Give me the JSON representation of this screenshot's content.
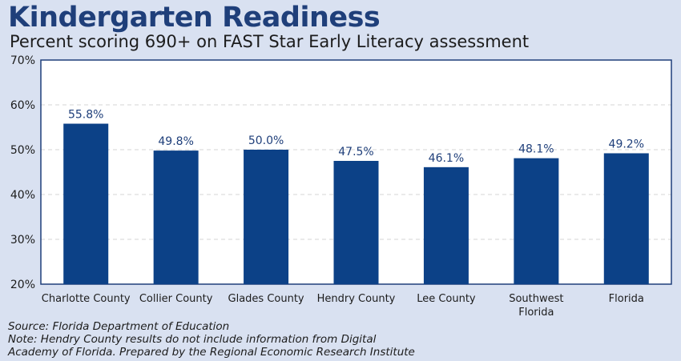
{
  "chart_data": {
    "type": "bar",
    "title": "Kindergarten Readiness",
    "subtitle": "Percent scoring 690+ on FAST Star Early Literacy assessment",
    "categories": [
      [
        "Charlotte County"
      ],
      [
        "Collier County"
      ],
      [
        "Glades County"
      ],
      [
        "Hendry County"
      ],
      [
        "Lee County"
      ],
      [
        "Southwest",
        "Florida"
      ],
      [
        "Florida"
      ]
    ],
    "values": [
      55.8,
      49.8,
      50.0,
      47.5,
      46.1,
      48.1,
      49.2
    ],
    "data_labels": [
      "55.8%",
      "49.8%",
      "50.0%",
      "47.5%",
      "46.1%",
      "48.1%",
      "49.2%"
    ],
    "ylim": [
      20,
      70
    ],
    "yticks": [
      20,
      30,
      40,
      50,
      60,
      70
    ],
    "ytick_labels": [
      "20%",
      "30%",
      "40%",
      "50%",
      "60%",
      "70%"
    ],
    "grid": true,
    "bar_color": "#0c4187"
  },
  "footer": {
    "source": "Source:  Florida Department of Education",
    "note1": "Note: Hendry County results do not include information from Digital",
    "note2": "Academy of Florida. Prepared by the Regional Economic Research Institute"
  }
}
